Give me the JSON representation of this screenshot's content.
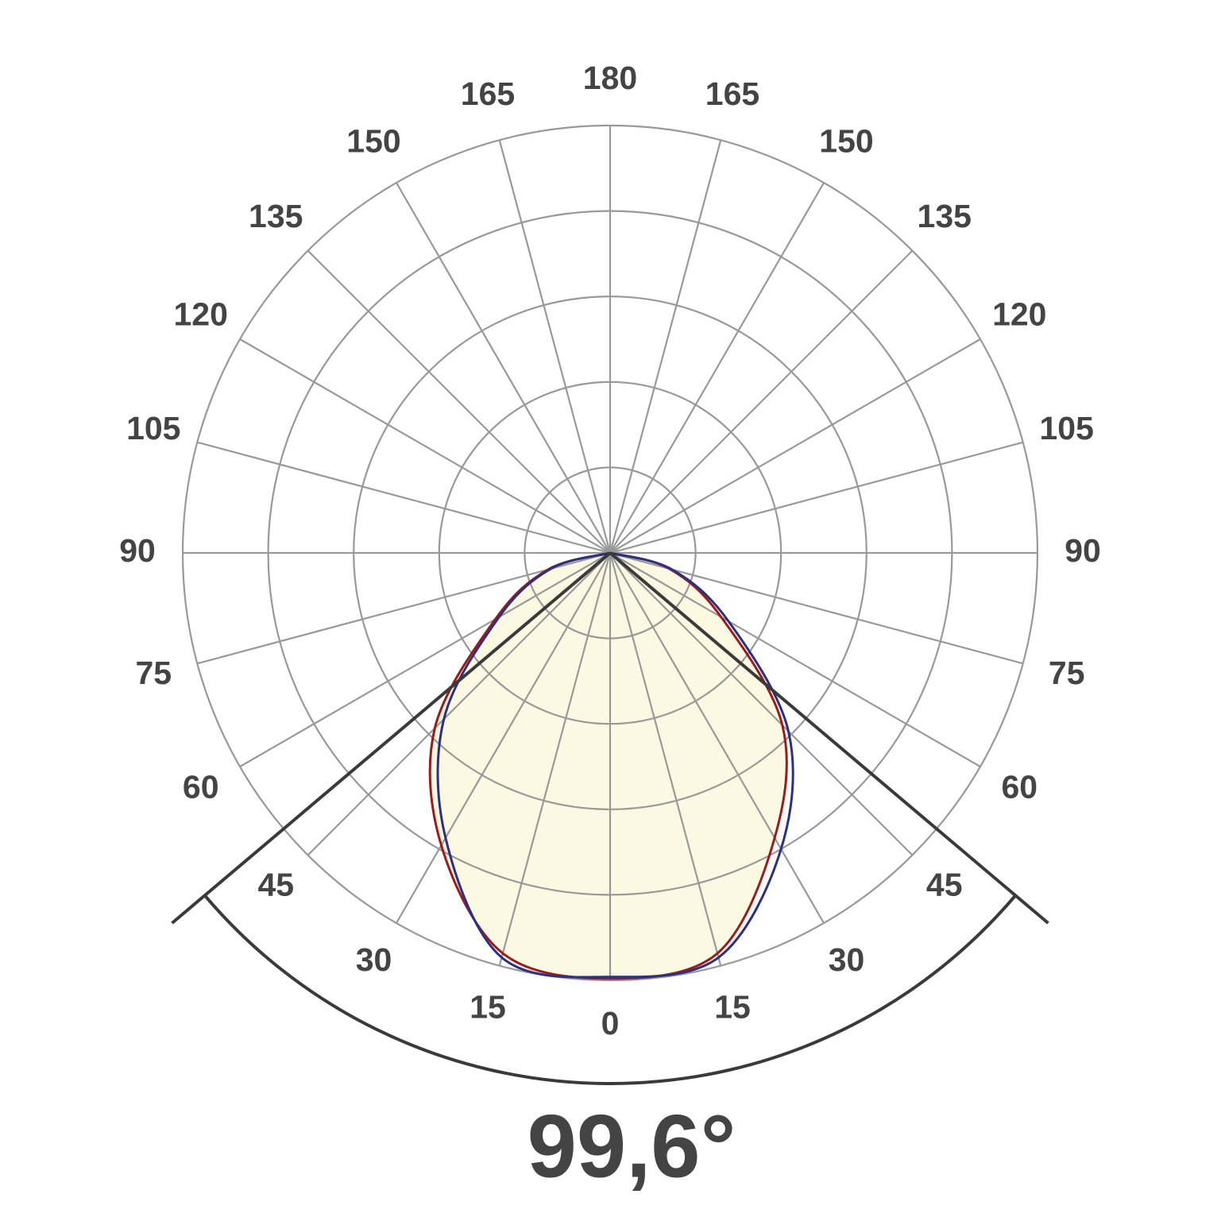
{
  "chart_data": {
    "type": "polar",
    "theta_ticks": [
      0,
      15,
      30,
      45,
      60,
      75,
      90,
      105,
      120,
      135,
      150,
      165,
      180
    ],
    "rlim": [
      0,
      5
    ],
    "rticks": [
      1,
      2,
      3,
      4,
      5
    ],
    "grid": true,
    "area_color": "#fcf9e3",
    "series": [
      {
        "color": "#9b1c1c",
        "x": [
          -90,
          -75,
          -60,
          -45,
          -30,
          -15,
          0,
          15,
          30,
          45,
          60,
          75,
          90
        ],
        "values": [
          0,
          0.75,
          1.55,
          2.9,
          3.95,
          4.85,
          4.98,
          4.85,
          3.85,
          2.85,
          1.5,
          0.72,
          0
        ]
      },
      {
        "color": "#2b3080",
        "x": [
          -90,
          -75,
          -60,
          -45,
          -30,
          -15,
          0,
          15,
          30,
          45,
          60,
          75,
          90
        ],
        "values": [
          0,
          0.72,
          1.5,
          2.75,
          3.85,
          4.9,
          4.96,
          4.9,
          4.0,
          2.95,
          1.6,
          0.75,
          0
        ]
      }
    ],
    "beam_angle": {
      "value": 99.6,
      "label": "99,6°"
    }
  }
}
